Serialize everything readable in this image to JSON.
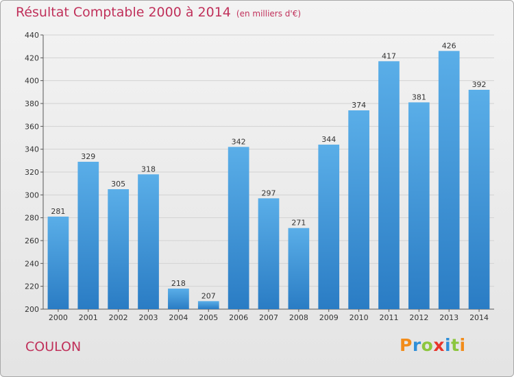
{
  "header": {
    "title": "Résultat Comptable 2000 à 2014",
    "subtitle": "(en milliers d'€)"
  },
  "footer": {
    "commune": "COULON",
    "logo_text": "Proxiti",
    "logo_letters": [
      {
        "ch": "P",
        "color": "#f28c1a"
      },
      {
        "ch": "r",
        "color": "#2f8fd8"
      },
      {
        "ch": "o",
        "color": "#8cc63e"
      },
      {
        "ch": "x",
        "color": "#e8342a"
      },
      {
        "ch": "i",
        "color": "#2f8fd8"
      },
      {
        "ch": "t",
        "color": "#8cc63e"
      },
      {
        "ch": "i",
        "color": "#f28c1a"
      }
    ]
  },
  "colors": {
    "bar_top": "#5aaee8",
    "bar_bottom": "#2a7cc4",
    "title": "#c0305a",
    "grid": "#d2d2d2"
  },
  "chart_data": {
    "type": "bar",
    "title": "Résultat Comptable 2000 à 2014",
    "subtitle": "(en milliers d'€)",
    "categories": [
      "2000",
      "2001",
      "2002",
      "2003",
      "2004",
      "2005",
      "2006",
      "2007",
      "2008",
      "2009",
      "2010",
      "2011",
      "2012",
      "2013",
      "2014"
    ],
    "values": [
      281,
      329,
      305,
      318,
      218,
      207,
      342,
      297,
      271,
      344,
      374,
      417,
      381,
      426,
      392
    ],
    "ylim": [
      200,
      440
    ],
    "yticks": [
      200,
      220,
      240,
      260,
      280,
      300,
      320,
      340,
      360,
      380,
      400,
      420,
      440
    ],
    "grid": true,
    "data_labels": true
  }
}
